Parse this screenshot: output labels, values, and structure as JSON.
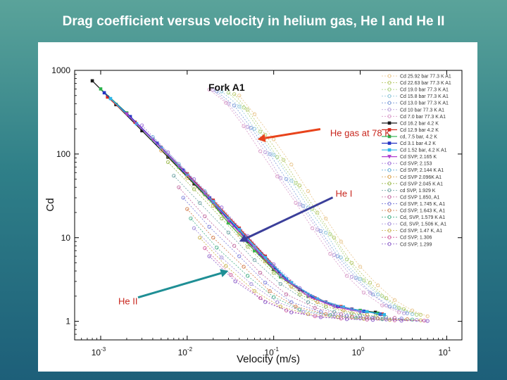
{
  "slide": {
    "title": "Drag coefficient versus velocity in helium gas, He I and He II"
  },
  "colors": {
    "background_top": "#5aa39a",
    "background_bottom": "#1d5f79",
    "arrow_he_gas": "#e8431b",
    "arrow_he1": "#3b3f9a",
    "arrow_he2": "#1f8f95",
    "annotation_text": "#c8251c"
  },
  "chart_data": {
    "type": "scatter",
    "title": "Fork A1",
    "xlabel": "Velocity (m/s)",
    "ylabel": "Cd",
    "xscale": "log",
    "yscale": "log",
    "xlim": [
      0.0005,
      15
    ],
    "ylim": [
      0.6,
      1000
    ],
    "x_ticks": [
      {
        "value": 0.001,
        "base": "10",
        "exp": "-3"
      },
      {
        "value": 0.01,
        "base": "10",
        "exp": "-2"
      },
      {
        "value": 0.1,
        "base": "10",
        "exp": "-1"
      },
      {
        "value": 1,
        "base": "10",
        "exp": "0"
      },
      {
        "value": 10,
        "base": "10",
        "exp": "1"
      }
    ],
    "y_ticks": [
      {
        "value": 1,
        "label": "1"
      },
      {
        "value": 10,
        "label": "10"
      },
      {
        "value": 100,
        "label": "100"
      },
      {
        "value": 1000,
        "label": "1000"
      }
    ],
    "legend_position": "top-right",
    "annotations": [
      {
        "id": "he-gas",
        "text": "He gas at 78 K",
        "color": "#e8431b",
        "text_x": 0.45,
        "text_y": 180,
        "tip_x": 0.065,
        "tip_y": 150
      },
      {
        "id": "he1",
        "text": "He I",
        "color": "#3b3f9a",
        "text_x": 0.5,
        "text_y": 34,
        "tip_x": 0.04,
        "tip_y": 9
      },
      {
        "id": "he2",
        "text": "He II",
        "color": "#1f8f95",
        "text_x": 0.0016,
        "text_y": 1.75,
        "tip_x": 0.03,
        "tip_y": 4
      }
    ],
    "series": [
      {
        "name": "Cd 25.92 bar 77.3 K A1",
        "color": "#e8c48a",
        "marker": "o",
        "x": [
          0.04,
          0.06,
          0.1,
          0.16,
          0.25,
          0.4,
          0.6,
          1.0,
          1.6,
          2.5,
          4.0,
          6.0
        ],
        "y": [
          500,
          300,
          150,
          75,
          36,
          17,
          9,
          4.5,
          2.7,
          1.8,
          1.35,
          1.15
        ]
      },
      {
        "name": "Cd 22.63 bar 77.3 K A1",
        "color": "#b7c96a",
        "marker": "o",
        "x": [
          0.035,
          0.05,
          0.08,
          0.13,
          0.2,
          0.32,
          0.5,
          0.8,
          1.3,
          2.0,
          3.2,
          5.0
        ],
        "y": [
          520,
          340,
          170,
          85,
          42,
          20,
          10,
          5.0,
          2.9,
          1.9,
          1.4,
          1.2
        ]
      },
      {
        "name": "Cd 19.0 bar 77.3 K A1",
        "color": "#a7d07a",
        "marker": "o",
        "x": [
          0.03,
          0.045,
          0.07,
          0.11,
          0.18,
          0.28,
          0.45,
          0.7,
          1.1,
          1.8,
          2.8,
          4.5
        ],
        "y": [
          540,
          360,
          185,
          92,
          45,
          22,
          11,
          5.5,
          3.1,
          2.0,
          1.45,
          1.2
        ]
      },
      {
        "name": "Cd 15.8 bar 77.3 K A1",
        "color": "#8bc3d8",
        "marker": "o",
        "x": [
          0.025,
          0.04,
          0.06,
          0.1,
          0.16,
          0.25,
          0.4,
          0.6,
          1.0,
          1.6,
          2.5,
          4.0
        ],
        "y": [
          560,
          370,
          200,
          98,
          48,
          23,
          11.5,
          5.8,
          3.2,
          2.1,
          1.5,
          1.22
        ]
      },
      {
        "name": "Cd 13.0 bar 77.3 K A1",
        "color": "#7b9bd8",
        "marker": "o",
        "x": [
          0.022,
          0.035,
          0.055,
          0.09,
          0.14,
          0.22,
          0.35,
          0.55,
          0.9,
          1.4,
          2.2,
          3.5
        ],
        "y": [
          560,
          380,
          205,
          100,
          50,
          24,
          12,
          6.0,
          3.3,
          2.1,
          1.5,
          1.25
        ]
      },
      {
        "name": "Cd 10 bar 77.3 K A1",
        "color": "#b59ad8",
        "marker": "o",
        "x": [
          0.02,
          0.03,
          0.05,
          0.08,
          0.12,
          0.2,
          0.32,
          0.5,
          0.8,
          1.3,
          2.0,
          3.2
        ],
        "y": [
          580,
          400,
          210,
          105,
          52,
          25,
          12.5,
          6.2,
          3.4,
          2.2,
          1.55,
          1.25
        ]
      },
      {
        "name": "Cd 7.0 bar 77.3 K A1",
        "color": "#d89ac8",
        "marker": "o",
        "x": [
          0.018,
          0.028,
          0.045,
          0.07,
          0.11,
          0.18,
          0.28,
          0.45,
          0.7,
          1.1,
          1.8,
          2.8
        ],
        "y": [
          590,
          410,
          215,
          108,
          54,
          26,
          13,
          6.4,
          3.5,
          2.2,
          1.55,
          1.28
        ]
      },
      {
        "name": "Cd 16.2 bar 4.2 K",
        "color": "#1a1a1a",
        "marker": "s",
        "x": [
          0.0008,
          0.0015,
          0.003,
          0.006,
          0.012,
          0.025,
          0.05,
          0.1,
          0.2,
          0.4,
          0.8,
          1.5
        ],
        "y": [
          750,
          390,
          190,
          92,
          44,
          20,
          9,
          4.2,
          2.4,
          1.7,
          1.4,
          1.28
        ]
      },
      {
        "name": "Cd 12.9 bar 4.2 K",
        "color": "#d42a1e",
        "marker": "s",
        "x": [
          0.0012,
          0.0025,
          0.005,
          0.01,
          0.02,
          0.04,
          0.08,
          0.15,
          0.3,
          0.6,
          1.2,
          1.8
        ],
        "y": [
          480,
          240,
          120,
          58,
          28,
          13,
          6.0,
          3.0,
          1.9,
          1.5,
          1.3,
          1.22
        ]
      },
      {
        "name": "cd, 7.5 bar, 4.2 K",
        "color": "#2bb24c",
        "marker": "s",
        "x": [
          0.001,
          0.002,
          0.004,
          0.008,
          0.016,
          0.03,
          0.06,
          0.12,
          0.25,
          0.5,
          1.0,
          1.6
        ],
        "y": [
          600,
          310,
          150,
          70,
          33,
          15,
          7.0,
          3.4,
          2.0,
          1.55,
          1.35,
          1.25
        ]
      },
      {
        "name": "Cd 3.1 bar 4.2 K",
        "color": "#2433c4",
        "marker": "s",
        "x": [
          0.0011,
          0.0022,
          0.0045,
          0.009,
          0.018,
          0.035,
          0.07,
          0.14,
          0.28,
          0.55,
          1.1,
          1.7
        ],
        "y": [
          540,
          280,
          135,
          64,
          30,
          14,
          6.4,
          3.2,
          1.95,
          1.5,
          1.32,
          1.22
        ]
      },
      {
        "name": "Cd 1.52 bar, 4.2 K A1",
        "color": "#2fb5e8",
        "marker": "s",
        "x": [
          0.0013,
          0.0026,
          0.005,
          0.01,
          0.02,
          0.04,
          0.08,
          0.16,
          0.32,
          0.64,
          1.2,
          1.9
        ],
        "y": [
          460,
          230,
          118,
          56,
          27,
          12.5,
          5.8,
          2.9,
          1.85,
          1.48,
          1.3,
          1.2
        ]
      },
      {
        "name": "Cd SVP, 2.165 K",
        "color": "#b040d0",
        "marker": "v",
        "x": [
          0.002,
          0.004,
          0.008,
          0.016,
          0.03,
          0.06,
          0.12,
          0.25,
          0.5,
          1.0
        ],
        "y": [
          300,
          150,
          72,
          34,
          16,
          7.5,
          3.5,
          2.0,
          1.5,
          1.3
        ]
      },
      {
        "name": "Cd SVP, 2.153",
        "color": "#9a6ad8",
        "marker": "o",
        "x": [
          0.003,
          0.006,
          0.012,
          0.025,
          0.05,
          0.1,
          0.2,
          0.4,
          0.8
        ],
        "y": [
          220,
          105,
          50,
          23,
          10.5,
          4.8,
          2.5,
          1.7,
          1.4
        ]
      },
      {
        "name": "Cd SVP, 2.144 K A1",
        "color": "#6ab0d8",
        "marker": "o",
        "x": [
          0.004,
          0.008,
          0.016,
          0.03,
          0.06,
          0.12,
          0.25,
          0.5,
          1.0
        ],
        "y": [
          160,
          76,
          36,
          17,
          7.8,
          3.6,
          2.1,
          1.55,
          1.3
        ]
      },
      {
        "name": "Cd SVP 2.096K A1",
        "color": "#d8a04a",
        "marker": "o",
        "x": [
          0.005,
          0.01,
          0.02,
          0.04,
          0.08,
          0.16,
          0.32,
          0.64,
          1.2
        ],
        "y": [
          110,
          52,
          24,
          11,
          5.2,
          2.6,
          1.7,
          1.35,
          1.2
        ]
      },
      {
        "name": "Cd SVP 2.045 K A1",
        "color": "#9ab84a",
        "marker": "o",
        "x": [
          0.006,
          0.012,
          0.025,
          0.05,
          0.1,
          0.2,
          0.4,
          0.8,
          1.5
        ],
        "y": [
          80,
          38,
          17,
          7.8,
          3.8,
          2.1,
          1.5,
          1.25,
          1.15
        ]
      },
      {
        "name": "cd SVP, 1.929 K",
        "color": "#6aa0a0",
        "marker": "o",
        "x": [
          0.007,
          0.014,
          0.03,
          0.06,
          0.12,
          0.25,
          0.5,
          1.0,
          2.0
        ],
        "y": [
          55,
          26,
          11.5,
          5.4,
          2.8,
          1.7,
          1.3,
          1.18,
          1.12
        ]
      },
      {
        "name": "Cd SVP 1.850, A1",
        "color": "#c06aa0",
        "marker": "o",
        "x": [
          0.008,
          0.016,
          0.035,
          0.07,
          0.14,
          0.3,
          0.6,
          1.2,
          2.5
        ],
        "y": [
          40,
          18,
          8,
          3.8,
          2.1,
          1.45,
          1.22,
          1.12,
          1.1
        ]
      },
      {
        "name": "Cd SVP, 1.745 K, A1",
        "color": "#7a7ad8",
        "marker": "o",
        "x": [
          0.009,
          0.018,
          0.04,
          0.08,
          0.16,
          0.35,
          0.7,
          1.4,
          3.0
        ],
        "y": [
          30,
          13.5,
          6.0,
          2.9,
          1.7,
          1.3,
          1.16,
          1.1,
          1.08
        ]
      },
      {
        "name": "Cd SVP, 1.643 K, A1",
        "color": "#d07a4a",
        "marker": "o",
        "x": [
          0.01,
          0.02,
          0.045,
          0.09,
          0.18,
          0.4,
          0.8,
          1.6,
          3.5
        ],
        "y": [
          22,
          10,
          4.5,
          2.3,
          1.5,
          1.22,
          1.12,
          1.08,
          1.06
        ]
      },
      {
        "name": "Cd, SVP, 1.579 K A1",
        "color": "#4ab08a",
        "marker": "o",
        "x": [
          0.011,
          0.022,
          0.05,
          0.1,
          0.2,
          0.45,
          0.9,
          1.8,
          4.0
        ],
        "y": [
          17,
          7.6,
          3.5,
          1.95,
          1.38,
          1.18,
          1.1,
          1.06,
          1.05
        ]
      },
      {
        "name": "Cd, SVP, 1.506 K, A1",
        "color": "#a08ad8",
        "marker": "o",
        "x": [
          0.012,
          0.025,
          0.055,
          0.11,
          0.22,
          0.5,
          1.0,
          2.0,
          4.5
        ],
        "y": [
          13,
          5.8,
          2.8,
          1.7,
          1.3,
          1.15,
          1.08,
          1.05,
          1.04
        ]
      },
      {
        "name": "Cd SVP, 1.47 K, A1",
        "color": "#c8b04a",
        "marker": "o",
        "x": [
          0.014,
          0.028,
          0.06,
          0.12,
          0.25,
          0.55,
          1.1,
          2.2,
          5.0
        ],
        "y": [
          10,
          4.6,
          2.3,
          1.5,
          1.22,
          1.12,
          1.07,
          1.04,
          1.03
        ]
      },
      {
        "name": "Cd SVP, 1.306",
        "color": "#d05a9a",
        "marker": "o",
        "x": [
          0.016,
          0.032,
          0.07,
          0.14,
          0.3,
          0.6,
          1.2,
          2.5,
          5.5
        ],
        "y": [
          7.5,
          3.6,
          1.9,
          1.35,
          1.15,
          1.08,
          1.05,
          1.03,
          1.02
        ]
      },
      {
        "name": "Cd SVP, 1.299",
        "color": "#8a5ac8",
        "marker": "o",
        "x": [
          0.018,
          0.036,
          0.08,
          0.16,
          0.35,
          0.7,
          1.4,
          3.0,
          6.0
        ],
        "y": [
          6.0,
          3.0,
          1.7,
          1.28,
          1.12,
          1.06,
          1.04,
          1.02,
          1.01
        ]
      }
    ]
  }
}
